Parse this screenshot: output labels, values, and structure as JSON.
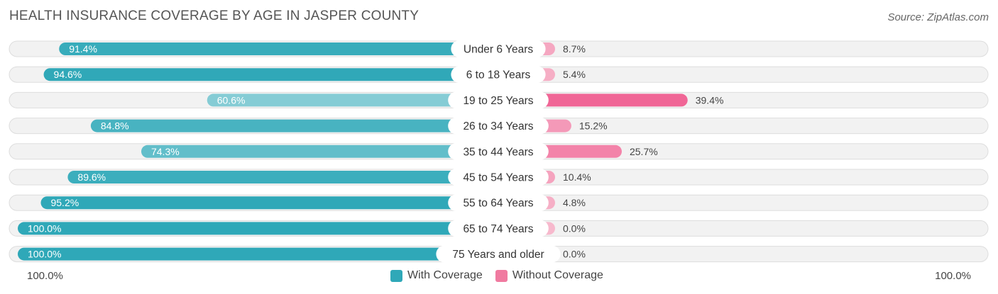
{
  "header": {
    "title": "HEALTH INSURANCE COVERAGE BY AGE IN JASPER COUNTY",
    "source": "Source: ZipAtlas.com"
  },
  "axis": {
    "left_label": "100.0%",
    "right_label": "100.0%"
  },
  "legend": {
    "with": {
      "label": "With Coverage",
      "color": "#2fa8b8"
    },
    "without": {
      "label": "Without Coverage",
      "color": "#f07aa0"
    }
  },
  "chart_data": {
    "type": "bar",
    "orientation": "horizontal-diverging",
    "title": "HEALTH INSURANCE COVERAGE BY AGE IN JASPER COUNTY",
    "categories": [
      "Under 6 Years",
      "6 to 18 Years",
      "19 to 25 Years",
      "26 to 34 Years",
      "35 to 44 Years",
      "45 to 54 Years",
      "55 to 64 Years",
      "65 to 74 Years",
      "75 Years and older"
    ],
    "series": [
      {
        "name": "With Coverage",
        "values": [
          91.4,
          94.6,
          60.6,
          84.8,
          74.3,
          89.6,
          95.2,
          100.0,
          100.0
        ],
        "labels": [
          "91.4%",
          "94.6%",
          "60.6%",
          "84.8%",
          "74.3%",
          "89.6%",
          "95.2%",
          "100.0%",
          "100.0%"
        ]
      },
      {
        "name": "Without Coverage",
        "values": [
          8.7,
          5.4,
          39.4,
          15.2,
          25.7,
          10.4,
          4.8,
          0.0,
          0.0
        ],
        "labels": [
          "8.7%",
          "5.4%",
          "39.4%",
          "15.2%",
          "25.7%",
          "10.4%",
          "4.8%",
          "0.0%",
          "0.0%"
        ]
      }
    ],
    "xlim": [
      0,
      100
    ],
    "legend_position": "bottom-center"
  }
}
